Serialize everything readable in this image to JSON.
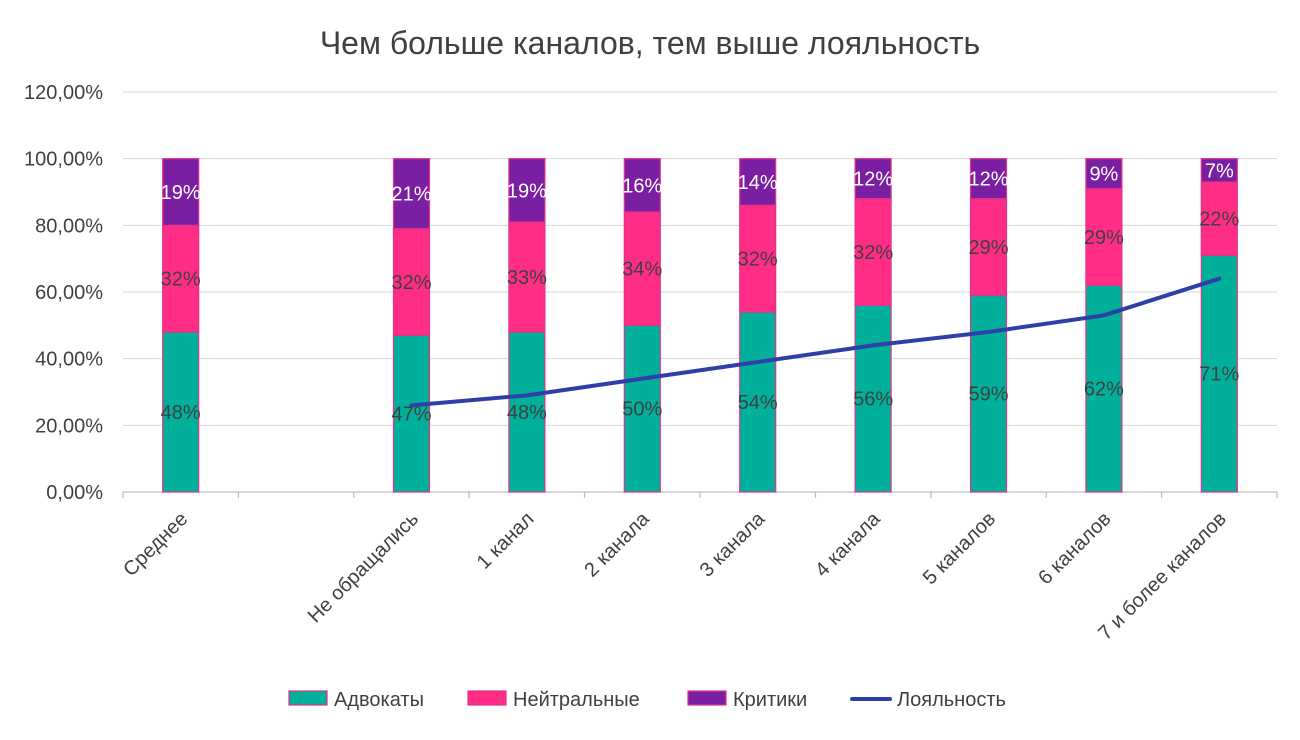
{
  "chart_data": {
    "type": "bar",
    "stacked": true,
    "title": "Чем больше каналов, тем выше лояльность",
    "xlabel": "",
    "ylabel": "",
    "ylim": [
      0,
      1.2
    ],
    "y_ticks": [
      0,
      0.2,
      0.4,
      0.6,
      0.8,
      1.0,
      1.2
    ],
    "y_tick_labels": [
      "0,00%",
      "20,00%",
      "40,00%",
      "60,00%",
      "80,00%",
      "100,00%",
      "120,00%"
    ],
    "grid": true,
    "legend_position": "bottom",
    "categories": [
      "Среднее",
      "",
      "Не обращались",
      "1 канал",
      "2 канала",
      "3 канала",
      "4 канала",
      "5 каналов",
      "6 каналов",
      "7 и более каналов"
    ],
    "series": [
      {
        "name": "Адвокаты",
        "color": "#00B09A",
        "values": [
          0.48,
          null,
          0.47,
          0.48,
          0.5,
          0.54,
          0.56,
          0.59,
          0.62,
          0.71
        ],
        "labels": [
          "48%",
          "",
          "47%",
          "48%",
          "50%",
          "54%",
          "56%",
          "59%",
          "62%",
          "71%"
        ]
      },
      {
        "name": "Нейтральные",
        "color": "#FF2D86",
        "values": [
          0.32,
          null,
          0.32,
          0.33,
          0.34,
          0.32,
          0.32,
          0.29,
          0.29,
          0.22
        ],
        "labels": [
          "32%",
          "",
          "32%",
          "33%",
          "34%",
          "32%",
          "32%",
          "29%",
          "29%",
          "22%"
        ]
      },
      {
        "name": "Критики",
        "color": "#7B1FA2",
        "values": [
          0.19,
          null,
          0.21,
          0.19,
          0.16,
          0.14,
          0.12,
          0.12,
          0.09,
          0.07
        ],
        "labels": [
          "19%",
          "",
          "21%",
          "19%",
          "16%",
          "14%",
          "12%",
          "12%",
          "9%",
          "7%"
        ]
      }
    ],
    "line_series": {
      "name": "Лояльность",
      "type": "line",
      "color": "#2E40A8",
      "values": [
        null,
        null,
        0.26,
        0.29,
        0.34,
        0.39,
        0.44,
        0.48,
        0.53,
        0.64
      ]
    }
  }
}
